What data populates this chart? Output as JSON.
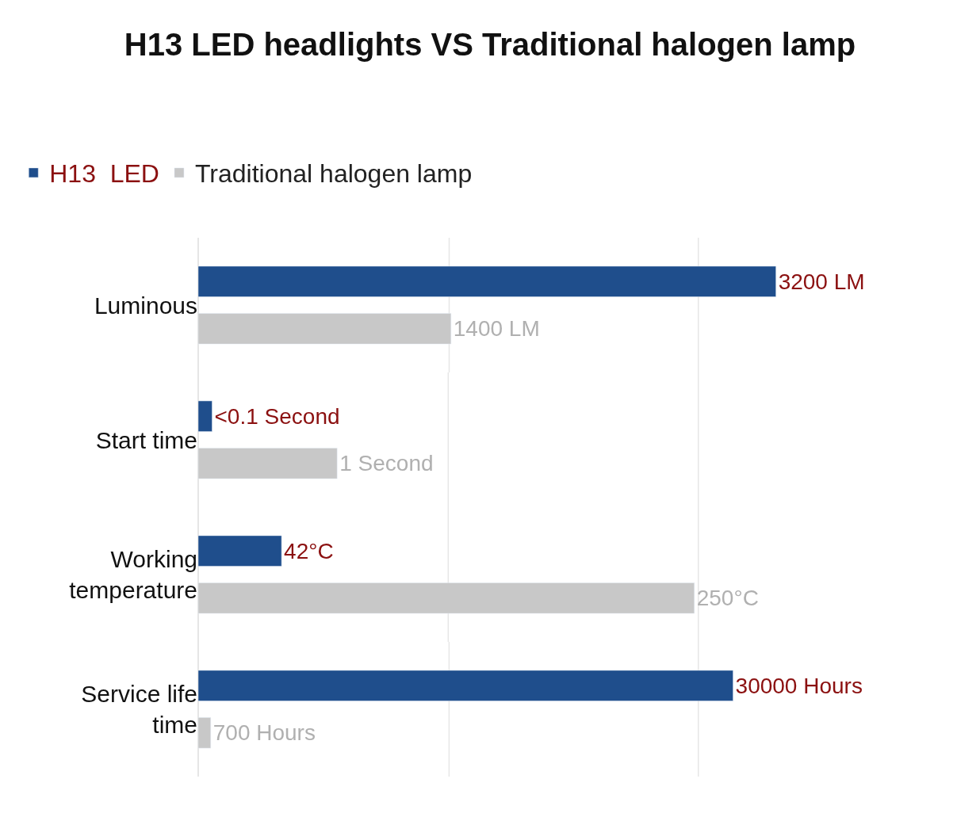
{
  "chart_data": [
    {
      "type": "bar",
      "orientation": "horizontal",
      "title": "H13 LED headlights VS Traditional halogen lamp",
      "categories": [
        "Luminous"
      ],
      "series": [
        {
          "name": "H13  LED",
          "color": "#1f4e8c",
          "values": [
            3200
          ],
          "value_labels": [
            "3200 LM"
          ]
        },
        {
          "name": "Traditional halogen lamp",
          "color": "#c8c8c8",
          "values": [
            1400
          ],
          "value_labels": [
            "1400 LM"
          ]
        }
      ],
      "ref_lines": [
        {
          "axis": "x",
          "value": 1390,
          "color": "#e6e6e6"
        },
        {
          "axis": "x",
          "value": 2770,
          "color": "#e6e6e6"
        }
      ],
      "tick_labels": "y",
      "legend": "top left"
    },
    {
      "type": "bar",
      "orientation": "horizontal",
      "categories": [
        "Start time"
      ],
      "series": [
        {
          "color": "#1f4e8c",
          "values": [
            0.1
          ],
          "value_labels": [
            "<0.1 Second"
          ]
        },
        {
          "color": "#c8c8c8",
          "values": [
            1
          ],
          "value_labels": [
            "1 Second"
          ]
        }
      ],
      "ref_lines": [
        {
          "axis": "x",
          "value": 1.8,
          "color": "#e6e6e6"
        },
        {
          "axis": "x",
          "value": 3.6,
          "color": "#e6e6e6"
        }
      ],
      "tick_labels": "y"
    },
    {
      "type": "bar",
      "orientation": "horizontal",
      "categories": [
        "Working temperature"
      ],
      "series": [
        {
          "color": "#1f4e8c",
          "values": [
            42
          ],
          "value_labels": [
            "42°C"
          ]
        },
        {
          "color": "#c8c8c8",
          "values": [
            250
          ],
          "value_labels": [
            "250°C"
          ]
        }
      ],
      "ref_lines": [
        {
          "axis": "x",
          "value": 126,
          "color": "#e6e6e6"
        },
        {
          "axis": "x",
          "value": 252,
          "color": "#e6e6e6"
        }
      ],
      "tick_labels": "y"
    },
    {
      "type": "bar",
      "orientation": "horizontal",
      "categories": [
        "Service life time"
      ],
      "series": [
        {
          "color": "#1f4e8c",
          "values": [
            30000
          ],
          "value_labels": [
            "30000 Hours"
          ]
        },
        {
          "color": "#c8c8c8",
          "values": [
            700
          ],
          "value_labels": [
            "700 Hours"
          ]
        }
      ],
      "ref_lines": [
        {
          "axis": "x",
          "value": 14070,
          "color": "#e6e6e6"
        },
        {
          "axis": "x",
          "value": 28050,
          "color": "#e6e6e6"
        }
      ],
      "tick_labels": "y"
    }
  ]
}
